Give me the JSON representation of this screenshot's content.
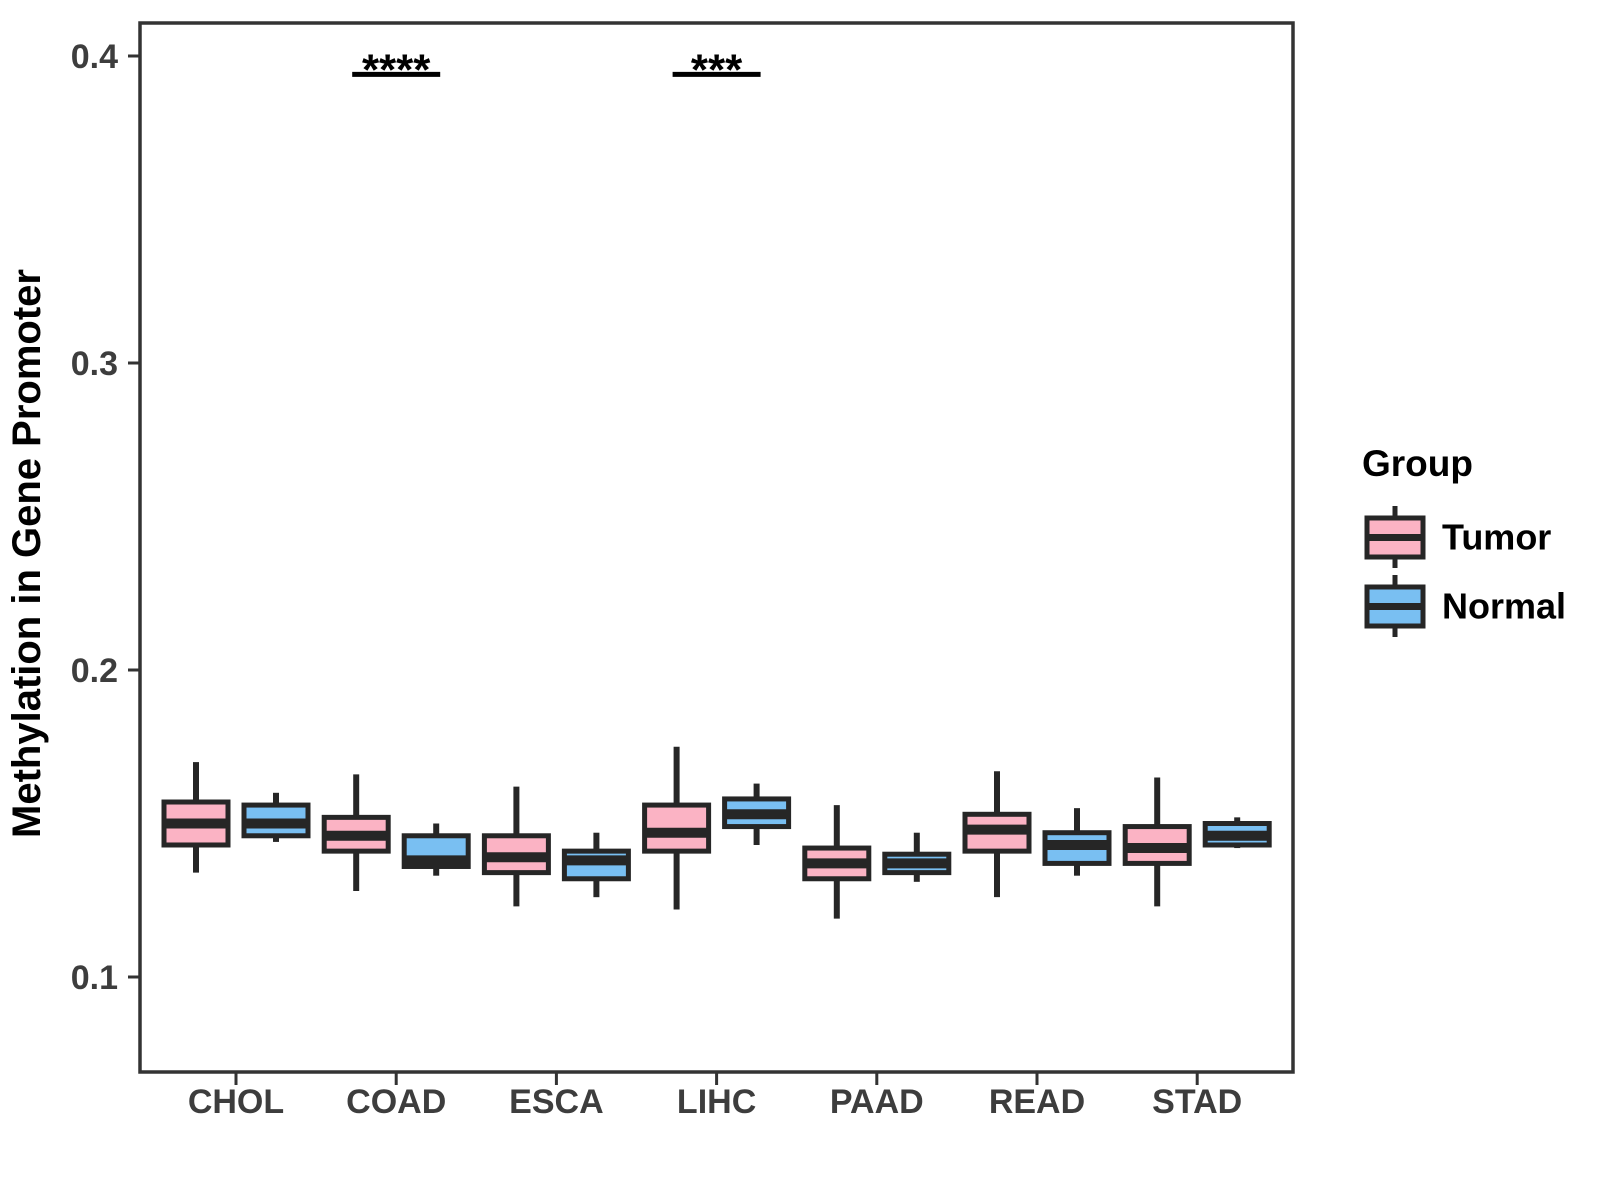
{
  "figure": {
    "background": "#ffffff"
  },
  "chart_data": {
    "type": "grouped_boxplot",
    "title": "",
    "xlabel": "",
    "ylabel": "Methylation in Gene Promoter",
    "categories": [
      "CHOL",
      "COAD",
      "ESCA",
      "LIHC",
      "PAAD",
      "READ",
      "STAD"
    ],
    "y_ticks": [
      0.1,
      0.2,
      0.3,
      0.4
    ],
    "y_tick_labels": [
      "0.1",
      "0.2",
      "0.3",
      "0.4"
    ],
    "ylim": [
      0.069,
      0.411
    ],
    "grid": "off",
    "legend_position": "right",
    "series": [
      {
        "name": "Tumor",
        "fill": "#FBB3C4",
        "stats": [
          {
            "min": 0.134,
            "q1": 0.143,
            "median": 0.15,
            "q3": 0.157,
            "max": 0.17
          },
          {
            "min": 0.128,
            "q1": 0.141,
            "median": 0.146,
            "q3": 0.152,
            "max": 0.166
          },
          {
            "min": 0.123,
            "q1": 0.134,
            "median": 0.139,
            "q3": 0.146,
            "max": 0.162
          },
          {
            "min": 0.122,
            "q1": 0.141,
            "median": 0.147,
            "q3": 0.156,
            "max": 0.175
          },
          {
            "min": 0.119,
            "q1": 0.132,
            "median": 0.137,
            "q3": 0.142,
            "max": 0.156
          },
          {
            "min": 0.126,
            "q1": 0.141,
            "median": 0.148,
            "q3": 0.153,
            "max": 0.167
          },
          {
            "min": 0.123,
            "q1": 0.137,
            "median": 0.142,
            "q3": 0.149,
            "max": 0.165
          }
        ]
      },
      {
        "name": "Normal",
        "fill": "#79BFF2",
        "stats": [
          {
            "min": 0.144,
            "q1": 0.146,
            "median": 0.15,
            "q3": 0.156,
            "max": 0.16
          },
          {
            "min": 0.133,
            "q1": 0.136,
            "median": 0.138,
            "q3": 0.146,
            "max": 0.15
          },
          {
            "min": 0.126,
            "q1": 0.132,
            "median": 0.138,
            "q3": 0.141,
            "max": 0.147
          },
          {
            "min": 0.143,
            "q1": 0.149,
            "median": 0.153,
            "q3": 0.158,
            "max": 0.163
          },
          {
            "min": 0.131,
            "q1": 0.134,
            "median": 0.137,
            "q3": 0.14,
            "max": 0.147
          },
          {
            "min": 0.133,
            "q1": 0.137,
            "median": 0.143,
            "q3": 0.147,
            "max": 0.155
          },
          {
            "min": 0.142,
            "q1": 0.143,
            "median": 0.146,
            "q3": 0.15,
            "max": 0.152
          }
        ]
      }
    ],
    "annotations": [
      {
        "category": "COAD",
        "label": "****",
        "y": 0.394
      },
      {
        "category": "LIHC",
        "label": "***",
        "y": 0.394
      }
    ],
    "legend": {
      "title": "Group",
      "entries": [
        {
          "label": "Tumor",
          "fill": "#FBB3C4"
        },
        {
          "label": "Normal",
          "fill": "#79BFF2"
        }
      ]
    },
    "style": {
      "box_border": "#262626",
      "axis_color": "#333333",
      "tick_label_color": "#3d3d3d",
      "text_color": "#000000",
      "background": "#ffffff"
    }
  }
}
